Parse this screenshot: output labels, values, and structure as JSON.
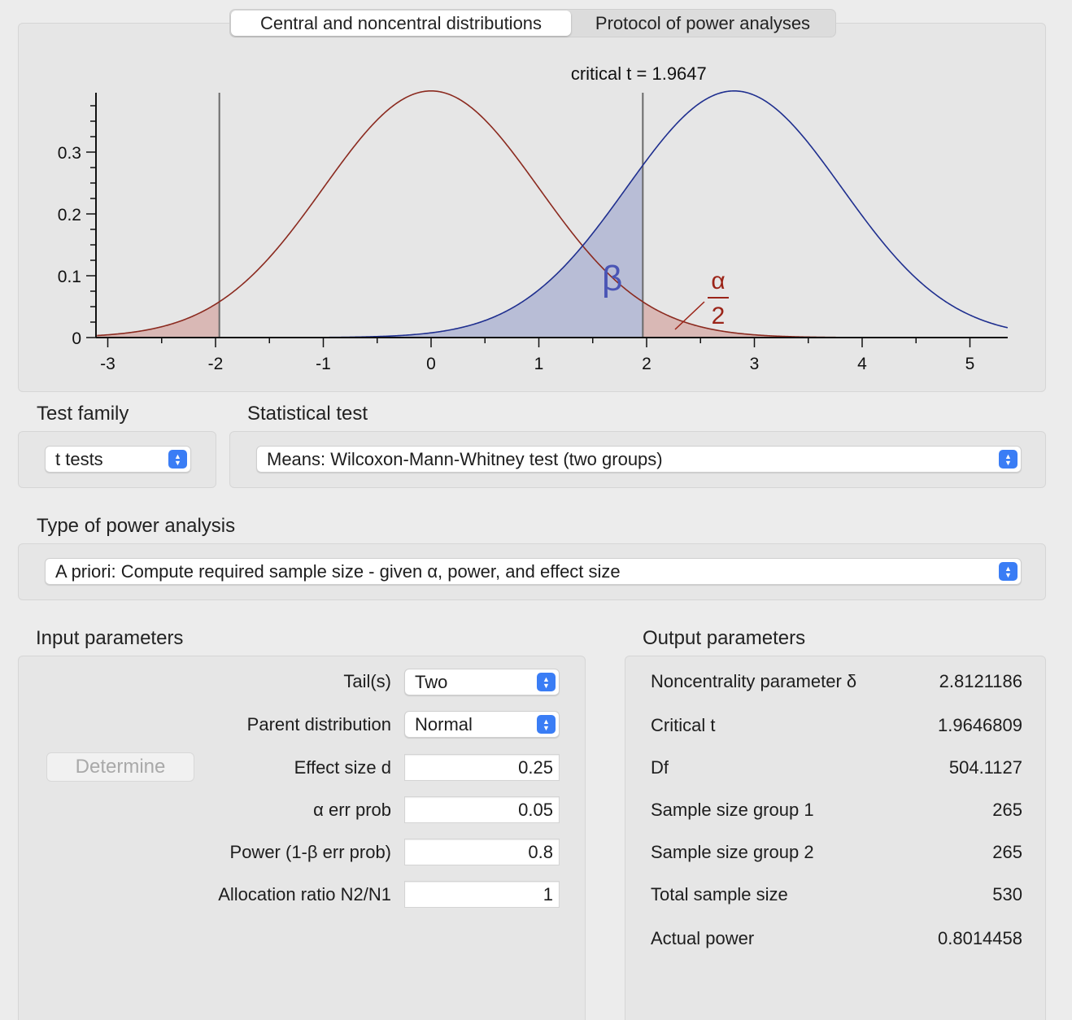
{
  "tabs": [
    {
      "label": "Central and noncentral distributions",
      "active": true
    },
    {
      "label": "Protocol of power analyses",
      "active": false
    }
  ],
  "chart_data": {
    "type": "area",
    "annotation": "critical t = 1.9647",
    "x_ticks": [
      "-3",
      "-2",
      "-1",
      "0",
      "1",
      "2",
      "3",
      "4",
      "5"
    ],
    "y_ticks": [
      "0",
      "0.1",
      "0.2",
      "0.3"
    ],
    "xlim": [
      -3.1,
      5.35
    ],
    "ylim": [
      0,
      0.4
    ],
    "critical_t": 1.9647,
    "central_mean": 0,
    "noncentral_mean": 2.8121186,
    "beta_label": "β",
    "alpha_label_num": "α",
    "alpha_label_den": "2",
    "colors": {
      "central": "#8b2a1f",
      "noncentral": "#1f2f8f",
      "beta_fill": "#b8bdd6",
      "alpha_fill": "#d9b8b5",
      "beta_text": "#4a55b5",
      "alpha_text": "#9b2418"
    }
  },
  "test_family": {
    "label": "Test family",
    "value": "t tests"
  },
  "statistical_test": {
    "label": "Statistical test",
    "value": "Means: Wilcoxon-Mann-Whitney test (two groups)"
  },
  "power_analysis": {
    "label": "Type of power analysis",
    "value": "A priori: Compute required sample size - given α, power, and effect size"
  },
  "input": {
    "heading": "Input parameters",
    "determine_label": "Determine",
    "tails": {
      "label": "Tail(s)",
      "value": "Two"
    },
    "parent": {
      "label": "Parent distribution",
      "value": "Normal"
    },
    "effect": {
      "label": "Effect size d",
      "value": "0.25"
    },
    "alpha": {
      "label": "α err prob",
      "value": "0.05"
    },
    "power": {
      "label": "Power (1-β err prob)",
      "value": "0.8"
    },
    "allocation": {
      "label": "Allocation ratio N2/N1",
      "value": "1"
    }
  },
  "output": {
    "heading": "Output parameters",
    "rows": [
      {
        "label": "Noncentrality parameter δ",
        "value": "2.8121186"
      },
      {
        "label": "Critical t",
        "value": "1.9646809"
      },
      {
        "label": "Df",
        "value": "504.1127"
      },
      {
        "label": "Sample size group 1",
        "value": "265"
      },
      {
        "label": "Sample size group 2",
        "value": "265"
      },
      {
        "label": "Total sample size",
        "value": "530"
      },
      {
        "label": "Actual power",
        "value": "0.8014458"
      }
    ]
  }
}
